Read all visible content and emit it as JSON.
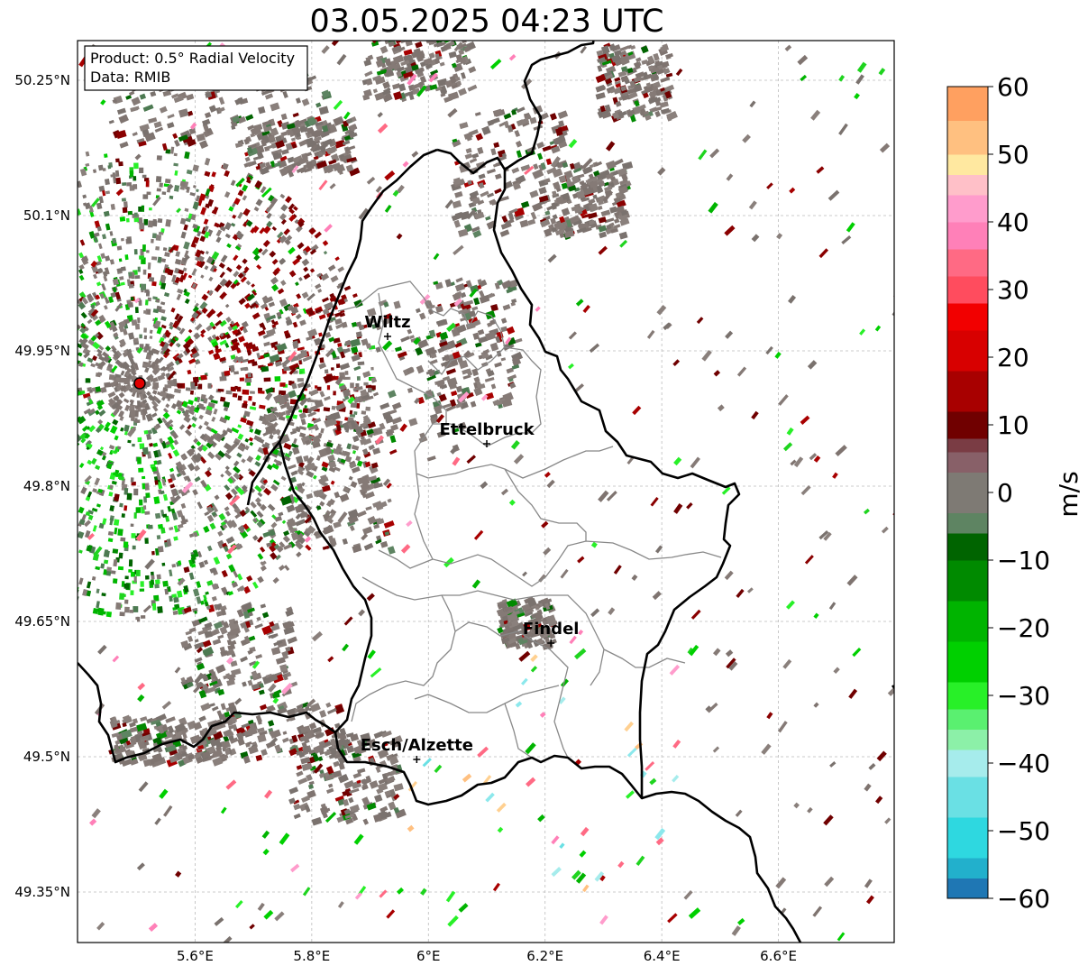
{
  "title": "03.05.2025 04:23 UTC",
  "info_box": {
    "product": "Product: 0.5° Radial Velocity",
    "data": "Data: RMIB"
  },
  "axes": {
    "lon_ticks": [
      {
        "value": 5.6,
        "label": "5.6°E"
      },
      {
        "value": 5.8,
        "label": "5.8°E"
      },
      {
        "value": 6.0,
        "label": "6°E"
      },
      {
        "value": 6.2,
        "label": "6.2°E"
      },
      {
        "value": 6.4,
        "label": "6.4°E"
      },
      {
        "value": 6.6,
        "label": "6.6°E"
      }
    ],
    "lat_ticks": [
      {
        "value": 50.25,
        "label": "50.25°N"
      },
      {
        "value": 50.1,
        "label": "50.1°N"
      },
      {
        "value": 49.95,
        "label": "49.95°N"
      },
      {
        "value": 49.8,
        "label": "49.8°N"
      },
      {
        "value": 49.65,
        "label": "49.65°N"
      },
      {
        "value": 49.5,
        "label": "49.5°N"
      },
      {
        "value": 49.35,
        "label": "49.35°N"
      }
    ],
    "lon_range": [
      5.4,
      6.8
    ],
    "lat_range": [
      49.3,
      50.3
    ],
    "grid": true
  },
  "cities": [
    {
      "name": "Wiltz",
      "lon": 5.93,
      "lat": 49.966
    },
    {
      "name": "Ettelbruck",
      "lon": 6.1,
      "lat": 49.847
    },
    {
      "name": "Findel",
      "lon": 6.21,
      "lat": 49.626
    },
    {
      "name": "Esch/Alzette",
      "lon": 5.98,
      "lat": 49.497
    }
  ],
  "radar_site": {
    "lon": 5.505,
    "lat": 49.914,
    "color": "#e00000"
  },
  "colorbar": {
    "label": "m/s",
    "min": -60,
    "max": 60,
    "ticks": [
      {
        "value": 60,
        "label": "60"
      },
      {
        "value": 50,
        "label": "50"
      },
      {
        "value": 40,
        "label": "40"
      },
      {
        "value": 30,
        "label": "30"
      },
      {
        "value": 20,
        "label": "20"
      },
      {
        "value": 10,
        "label": "10"
      },
      {
        "value": 0,
        "label": "0"
      },
      {
        "value": -10,
        "label": "−10"
      },
      {
        "value": -20,
        "label": "−20"
      },
      {
        "value": -30,
        "label": "−30"
      },
      {
        "value": -40,
        "label": "−40"
      },
      {
        "value": -50,
        "label": "−50"
      },
      {
        "value": -60,
        "label": "−60"
      }
    ],
    "stops": [
      {
        "from": -60,
        "to": -57,
        "color": "#1f77b4"
      },
      {
        "from": -57,
        "to": -54,
        "color": "#22b0cc"
      },
      {
        "from": -54,
        "to": -48,
        "color": "#2ed8e0"
      },
      {
        "from": -48,
        "to": -42,
        "color": "#6ae0e4"
      },
      {
        "from": -42,
        "to": -38,
        "color": "#a6ecec"
      },
      {
        "from": -38,
        "to": -35,
        "color": "#8cf0a8"
      },
      {
        "from": -35,
        "to": -32,
        "color": "#5af070"
      },
      {
        "from": -32,
        "to": -28,
        "color": "#28f028"
      },
      {
        "from": -28,
        "to": -22,
        "color": "#00d000"
      },
      {
        "from": -22,
        "to": -16,
        "color": "#00b400"
      },
      {
        "from": -16,
        "to": -10,
        "color": "#008a00"
      },
      {
        "from": -10,
        "to": -6,
        "color": "#006400"
      },
      {
        "from": -6,
        "to": -3,
        "color": "#5e8462"
      },
      {
        "from": -3,
        "to": 3,
        "color": "#7e7a74"
      },
      {
        "from": 3,
        "to": 6,
        "color": "#886068"
      },
      {
        "from": 6,
        "to": 8,
        "color": "#7a3c44"
      },
      {
        "from": 8,
        "to": 12,
        "color": "#700000"
      },
      {
        "from": 12,
        "to": 18,
        "color": "#a80000"
      },
      {
        "from": 18,
        "to": 24,
        "color": "#d80000"
      },
      {
        "from": 24,
        "to": 28,
        "color": "#f20000"
      },
      {
        "from": 28,
        "to": 32,
        "color": "#ff4c5e"
      },
      {
        "from": 32,
        "to": 36,
        "color": "#ff6a84"
      },
      {
        "from": 36,
        "to": 40,
        "color": "#ff80b8"
      },
      {
        "from": 40,
        "to": 44,
        "color": "#ff9ccc"
      },
      {
        "from": 44,
        "to": 47,
        "color": "#ffc0c8"
      },
      {
        "from": 47,
        "to": 50,
        "color": "#ffe8a0"
      },
      {
        "from": 50,
        "to": 55,
        "color": "#ffc080"
      },
      {
        "from": 55,
        "to": 60,
        "color": "#ffa060"
      }
    ]
  }
}
